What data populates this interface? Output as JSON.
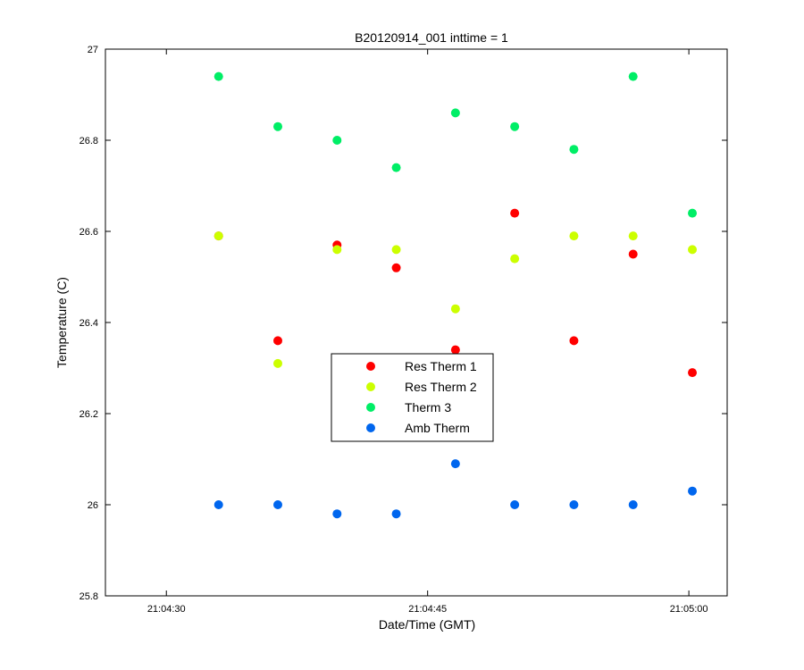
{
  "chart_data": {
    "type": "scatter",
    "title": "B20120914_001 inttime = 1",
    "xlabel": "Date/Time (GMT)",
    "ylabel": "Temperature (C)",
    "xlim": [
      "21:04:26.5",
      "21:05:02.2"
    ],
    "ylim": [
      25.8,
      27
    ],
    "x_ticks": [
      "21:04:30",
      "21:04:45",
      "21:05:00"
    ],
    "y_ticks": [
      "25.8",
      "26",
      "26.2",
      "26.4",
      "26.6",
      "26.8",
      "27"
    ],
    "grid": false,
    "legend_position": "center",
    "x": [
      "21:04:33.0",
      "21:04:36.4",
      "21:04:39.8",
      "21:04:43.2",
      "21:04:46.6",
      "21:04:50.0",
      "21:04:53.4",
      "21:04:56.8",
      "21:05:00.2"
    ],
    "series": [
      {
        "name": "Res Therm 1",
        "color": "#ff0000",
        "values": [
          26.59,
          26.36,
          26.57,
          26.52,
          26.34,
          26.64,
          26.36,
          26.55,
          26.29
        ]
      },
      {
        "name": "Res Therm 2",
        "color": "#ccff00",
        "values": [
          26.59,
          26.31,
          26.56,
          26.56,
          26.43,
          26.54,
          26.59,
          26.59,
          26.56
        ]
      },
      {
        "name": "Therm 3",
        "color": "#00ee66",
        "values": [
          26.94,
          26.83,
          26.8,
          26.74,
          26.86,
          26.83,
          26.78,
          26.94,
          26.64
        ]
      },
      {
        "name": "Amb Therm",
        "color": "#0066ee",
        "values": [
          26.0,
          26.0,
          25.98,
          25.98,
          26.09,
          26.0,
          26.0,
          26.0,
          26.03
        ]
      }
    ]
  }
}
